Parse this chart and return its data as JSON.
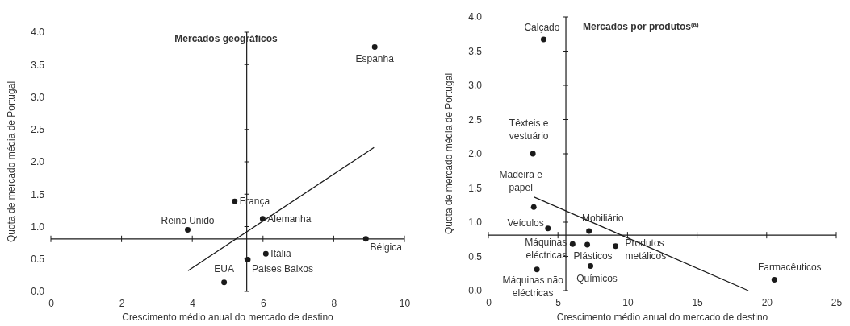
{
  "chart_data": [
    {
      "type": "scatter",
      "title": "Mercados geográficos",
      "xlabel": "Crescimento médio anual do mercado de destino",
      "ylabel": "Quota de mercado média de Portugal",
      "grid": false,
      "xlim": [
        0,
        10
      ],
      "xticks": [
        0,
        2,
        4,
        6,
        8,
        10
      ],
      "ylim": [
        0,
        4
      ],
      "yticks": [
        {
          "value": 0,
          "label": "0.0"
        },
        0.5,
        {
          "value": 1,
          "label": "1.0"
        },
        1.5,
        {
          "value": 2,
          "label": "2.0"
        },
        2.5,
        {
          "value": 3,
          "label": "3.0"
        },
        3.5,
        {
          "value": 4,
          "label": "4.0"
        }
      ],
      "series": [
        {
          "type": "scatter",
          "marker": "circle",
          "color": "#1a1a1a",
          "x": [
            9.16,
            5.2,
            5.99,
            3.87,
            8.91,
            6.08,
            5.57,
            4.9
          ],
          "values": [
            3.77,
            1.39,
            1.12,
            0.95,
            0.81,
            0.58,
            0.49,
            0.14
          ]
        },
        {
          "type": "line",
          "marker": "none",
          "color": "#1a1a1a",
          "x": [
            3.88,
            9.14
          ],
          "values": [
            0.32,
            2.22
          ]
        }
      ],
      "ref_lines": [
        {
          "axis": "x",
          "value": 5.54,
          "color": "#1a1a1a"
        },
        {
          "axis": "y",
          "value": 0.81,
          "color": "#1a1a1a"
        }
      ],
      "annotations": [
        {
          "text": "Espanha",
          "x": 9.16,
          "y": 3.77
        },
        {
          "text": "França",
          "x": 5.2,
          "y": 1.39
        },
        {
          "text": "Alemanha",
          "x": 5.99,
          "y": 1.12
        },
        {
          "text": "Reino Unido",
          "x": 3.87,
          "y": 0.95
        },
        {
          "text": "Bélgica",
          "x": 8.91,
          "y": 0.81
        },
        {
          "text": "Itália",
          "x": 6.08,
          "y": 0.58
        },
        {
          "text": "Países Baixos",
          "x": 5.57,
          "y": 0.49
        },
        {
          "text": "EUA",
          "x": 4.9,
          "y": 0.14
        }
      ]
    },
    {
      "type": "scatter",
      "title": "Mercados por produtos$^{(a)}$",
      "xlabel": "Crescimento médio anual do mercado de destino",
      "ylabel": "Quota de mercado média de Portugal",
      "grid": false,
      "xlim": [
        0,
        25
      ],
      "xticks": [
        0,
        5,
        10,
        15,
        20,
        25
      ],
      "ylim": [
        0,
        4
      ],
      "yticks": [
        {
          "value": 0,
          "label": "0.0"
        },
        0.5,
        {
          "value": 1,
          "label": "1.0"
        },
        1.5,
        {
          "value": 2,
          "label": "2.0"
        },
        2.5,
        {
          "value": 3,
          "label": "3.0"
        },
        3.5,
        {
          "value": 4,
          "label": "4.0"
        }
      ],
      "series": [
        {
          "type": "scatter",
          "marker": "circle",
          "color": "#1a1a1a",
          "x": [
            3.97,
            3.2,
            3.26,
            4.28,
            7.23,
            6.05,
            7.11,
            9.14,
            7.34,
            3.49,
            20.55
          ],
          "values": [
            3.67,
            2.0,
            1.22,
            0.91,
            0.87,
            0.68,
            0.67,
            0.65,
            0.36,
            0.31,
            0.16
          ]
        },
        {
          "type": "line",
          "marker": "none",
          "color": "#1a1a1a",
          "x": [
            3.26,
            18.68
          ],
          "values": [
            1.37,
            0.0
          ]
        }
      ],
      "ref_lines": [
        {
          "axis": "x",
          "value": 5.57,
          "color": "#1a1a1a"
        },
        {
          "axis": "y",
          "value": 0.81,
          "color": "#1a1a1a"
        }
      ],
      "annotations": [
        {
          "text": "Calçado",
          "x": 3.97,
          "y": 3.67
        },
        {
          "text": "Têxteis e vestuário",
          "x": 3.2,
          "y": 2.0
        },
        {
          "text": "Madeira e papel",
          "x": 3.26,
          "y": 1.22
        },
        {
          "text": "Veículos",
          "x": 4.28,
          "y": 0.91
        },
        {
          "text": "Mobiliário",
          "x": 7.23,
          "y": 0.87
        },
        {
          "text": "Máquinas eléctricas",
          "x": 6.05,
          "y": 0.68
        },
        {
          "text": "Plásticos",
          "x": 7.11,
          "y": 0.67
        },
        {
          "text": "Produtos metálicos",
          "x": 9.14,
          "y": 0.65
        },
        {
          "text": "Químicos",
          "x": 7.34,
          "y": 0.36
        },
        {
          "text": "Máquinas não eléctricas",
          "x": 3.49,
          "y": 0.31
        },
        {
          "text": "Farmacêuticos",
          "x": 20.55,
          "y": 0.16
        }
      ]
    }
  ]
}
